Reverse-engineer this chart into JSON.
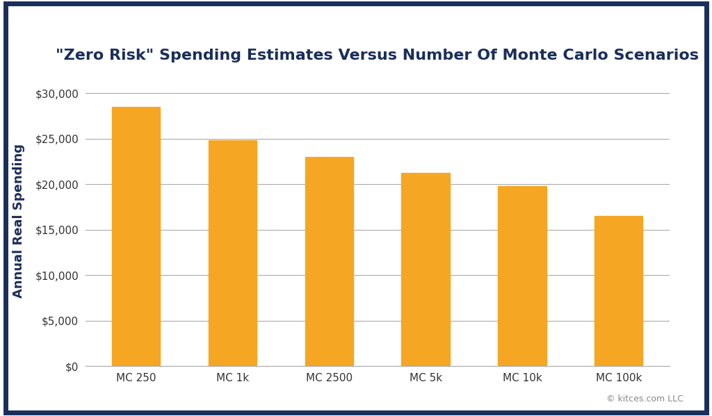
{
  "categories": [
    "MC 250",
    "MC 1k",
    "MC 2500",
    "MC 5k",
    "MC 10k",
    "MC 100k"
  ],
  "values": [
    28500,
    24800,
    23000,
    21200,
    19800,
    16500
  ],
  "bar_color": "#F5A623",
  "title": "\"Zero Risk\" Spending Estimates Versus Number Of Monte Carlo Scenarios",
  "ylabel": "Annual Real Spending",
  "xlabel": "",
  "ylim": [
    0,
    32000
  ],
  "yticks": [
    0,
    5000,
    10000,
    15000,
    20000,
    25000,
    30000
  ],
  "title_color": "#1a2e5a",
  "ylabel_color": "#1a2e5a",
  "tick_color": "#333333",
  "grid_color": "#aaaaaa",
  "background_color": "#ffffff",
  "border_color": "#1a2e5a",
  "copyright_text": "© kitces.com LLC",
  "title_fontsize": 16,
  "ylabel_fontsize": 13,
  "tick_fontsize": 11,
  "bar_width": 0.5
}
